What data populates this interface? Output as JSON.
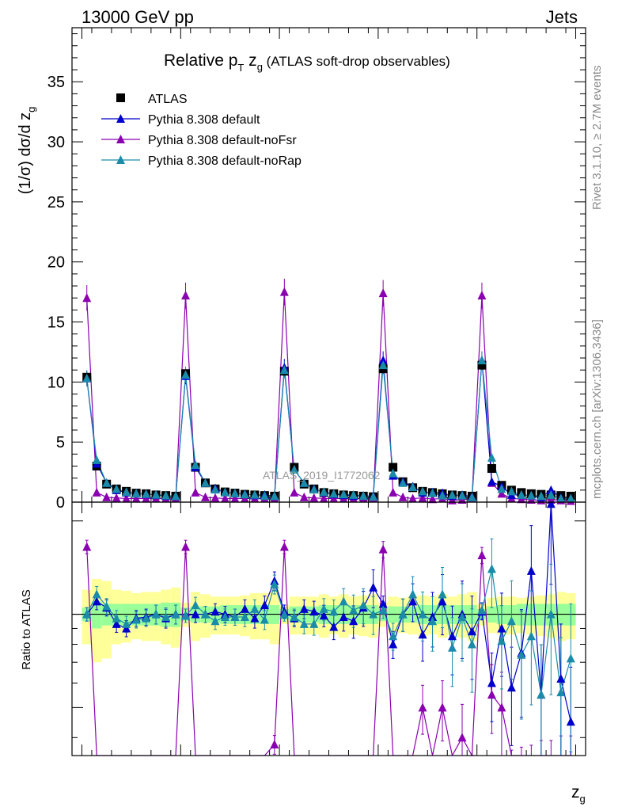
{
  "header": {
    "left": "13000 GeV pp",
    "right": "Jets"
  },
  "side_labels": {
    "rivet": "Rivet 3.1.10, ≥ 2.7M events",
    "mcplots": "mcplots.cern.ch [arXiv:1306.3436]"
  },
  "watermark": "ATLAS_2019_I1772062",
  "chart_data": {
    "type": "scatter",
    "title_main": "Relative p",
    "title_sub": "T",
    "title_z": " z",
    "title_g": "g",
    "title_rest": " (ATLAS soft-drop observables)",
    "ylabel_upper": "(1/σ) dσ/d z",
    "ylabel_upper_sub": "g",
    "ylabel_lower": "Ratio to ATLAS",
    "xlabel": "z",
    "xlabel_sub": "g",
    "xlim": [
      -1,
      51
    ],
    "ylim_upper": [
      0,
      39.5
    ],
    "ylim_lower": [
      0.35,
      2.3
    ],
    "x_ticks": [
      "0",
      "20",
      "40"
    ],
    "y_ticks_upper": [
      "0",
      "5",
      "10",
      "15",
      "20",
      "25",
      "30",
      "35"
    ],
    "y_ticks_lower": [
      "0.5",
      "1",
      "2"
    ],
    "legend": [
      "ATLAS",
      "Pythia 8.308 default",
      "Pythia 8.308 default-noFsr",
      "Pythia 8.308 default-noRap"
    ],
    "colors": {
      "data": "#000000",
      "default": "#0000cc",
      "noFsr": "#8a00b0",
      "noRap": "#1a8caa",
      "band_outer": "#ffff99",
      "band_inner": "#99ff99"
    },
    "x": [
      0.5,
      1.5,
      2.5,
      3.5,
      4.5,
      5.5,
      6.5,
      7.5,
      8.5,
      9.5,
      10.5,
      11.5,
      12.5,
      13.5,
      14.5,
      15.5,
      16.5,
      17.5,
      18.5,
      19.5,
      20.5,
      21.5,
      22.5,
      23.5,
      24.5,
      25.5,
      26.5,
      27.5,
      28.5,
      29.5,
      30.5,
      31.5,
      32.5,
      33.5,
      34.5,
      35.5,
      36.5,
      37.5,
      38.5,
      39.5,
      40.5,
      41.5,
      42.5,
      43.5,
      44.5,
      45.5,
      46.5,
      47.5,
      48.5,
      49.5
    ],
    "atlas": [
      10.4,
      3.0,
      1.5,
      1.1,
      0.9,
      0.75,
      0.7,
      0.6,
      0.55,
      0.5,
      10.7,
      2.9,
      1.6,
      1.1,
      0.85,
      0.75,
      0.65,
      0.6,
      0.55,
      0.5,
      10.9,
      2.9,
      1.5,
      1.1,
      0.8,
      0.7,
      0.6,
      0.55,
      0.5,
      0.45,
      11.1,
      2.9,
      1.7,
      1.2,
      0.9,
      0.8,
      0.7,
      0.6,
      0.55,
      0.5,
      11.4,
      2.8,
      1.4,
      1.0,
      0.8,
      0.7,
      0.65,
      0.6,
      0.55,
      0.5
    ],
    "default": [
      10.3,
      3.2,
      1.6,
      1.0,
      0.8,
      0.72,
      0.65,
      0.6,
      0.52,
      0.5,
      10.5,
      2.9,
      1.6,
      1.15,
      0.82,
      0.73,
      0.68,
      0.58,
      0.6,
      0.5,
      11.2,
      2.7,
      1.6,
      1.1,
      0.82,
      0.65,
      0.6,
      0.53,
      0.52,
      0.5,
      11.8,
      2.2,
      1.7,
      1.3,
      0.78,
      0.8,
      0.75,
      0.52,
      0.6,
      0.45,
      11.8,
      1.7,
      1.3,
      0.6,
      0.6,
      0.55,
      0.4,
      1.0,
      0.35,
      0.3
    ],
    "noFsr": [
      17.0,
      0.8,
      0.4,
      0.35,
      0.3,
      0.3,
      0.3,
      0.3,
      0.3,
      0.3,
      17.2,
      0.8,
      0.4,
      0.35,
      0.3,
      0.3,
      0.3,
      0.3,
      0.3,
      0.3,
      17.5,
      0.8,
      0.4,
      0.35,
      0.3,
      0.3,
      0.3,
      0.3,
      0.3,
      0.3,
      17.4,
      0.8,
      0.4,
      0.3,
      0.35,
      0.25,
      0.3,
      0.15,
      0.2,
      0.3,
      17.2,
      1.6,
      0.7,
      0.3,
      0.25,
      0.2,
      0.15,
      0.2,
      0.15,
      0.1
    ],
    "noRap": [
      10.3,
      3.5,
      1.6,
      1.1,
      0.85,
      0.72,
      0.68,
      0.62,
      0.55,
      0.5,
      10.6,
      3.1,
      1.6,
      1.05,
      0.82,
      0.73,
      0.64,
      0.62,
      0.52,
      0.5,
      11.0,
      2.7,
      1.6,
      1.05,
      0.85,
      0.7,
      0.65,
      0.6,
      0.53,
      0.45,
      11.4,
      2.4,
      1.6,
      1.25,
      0.9,
      0.75,
      0.55,
      0.6,
      0.55,
      0.4,
      11.8,
      3.7,
      1.1,
      0.9,
      0.6,
      0.55,
      0.5,
      0.6,
      0.3,
      0.3
    ],
    "ratio_default": [
      1.0,
      1.1,
      1.05,
      0.93,
      0.9,
      0.97,
      0.98,
      1.0,
      0.97,
      1.0,
      0.99,
      1.0,
      1.0,
      1.02,
      1.0,
      0.98,
      1.04,
      0.97,
      1.07,
      1.28,
      1.02,
      0.97,
      1.04,
      1.02,
      0.99,
      0.91,
      0.98,
      0.95,
      1.05,
      1.22,
      1.08,
      0.8,
      1.0,
      1.1,
      0.86,
      0.98,
      1.1,
      0.85,
      1.0,
      0.88,
      1.02,
      0.6,
      0.9,
      0.58,
      0.75,
      1.38,
      0.55,
      2.27,
      0.62,
      0.45
    ],
    "ratio_noFsr": [
      1.65,
      0.27,
      0.27,
      0.27,
      0.27,
      0.27,
      0.27,
      0.27,
      0.27,
      0.27,
      1.65,
      0.27,
      0.27,
      0.27,
      0.27,
      0.27,
      0.27,
      0.27,
      0.27,
      0.38,
      1.65,
      0.27,
      0.27,
      0.27,
      0.27,
      0.27,
      0.27,
      0.27,
      0.27,
      0.27,
      1.62,
      0.27,
      0.27,
      0.27,
      0.5,
      0.27,
      0.5,
      0.27,
      0.4,
      0.27,
      1.55,
      0.55,
      0.5,
      0.27,
      0.27,
      0.27,
      0.27,
      0.27,
      0.27,
      0.27
    ],
    "ratio_noRap": [
      1.0,
      1.16,
      1.06,
      0.97,
      0.93,
      0.96,
      0.97,
      1.0,
      0.98,
      1.0,
      0.99,
      1.07,
      1.0,
      0.95,
      0.98,
      0.98,
      0.98,
      1.04,
      0.96,
      1.25,
      1.0,
      0.98,
      0.93,
      0.93,
      1.04,
      1.02,
      1.1,
      1.03,
      1.07,
      1.0,
      1.03,
      0.85,
      1.0,
      1.16,
      1.0,
      0.95,
      1.16,
      0.78,
      0.98,
      0.8,
      1.03,
      1.4,
      0.82,
      0.95,
      0.74,
      0.85,
      0.55,
      1.0,
      0.56,
      0.72
    ],
    "band_inner": [
      0.05,
      0.1,
      0.08,
      0.08,
      0.08,
      0.08,
      0.08,
      0.08,
      0.09,
      0.09,
      0.05,
      0.06,
      0.06,
      0.06,
      0.07,
      0.07,
      0.07,
      0.07,
      0.07,
      0.07,
      0.04,
      0.06,
      0.06,
      0.06,
      0.07,
      0.07,
      0.07,
      0.07,
      0.07,
      0.07,
      0.05,
      0.06,
      0.06,
      0.06,
      0.07,
      0.07,
      0.07,
      0.07,
      0.07,
      0.07,
      0.04,
      0.06,
      0.07,
      0.07,
      0.08,
      0.08,
      0.08,
      0.08,
      0.08,
      0.08
    ],
    "band_outer": [
      0.2,
      0.3,
      0.28,
      0.2,
      0.19,
      0.17,
      0.18,
      0.18,
      0.2,
      0.22,
      0.09,
      0.18,
      0.16,
      0.14,
      0.14,
      0.14,
      0.15,
      0.17,
      0.17,
      0.2,
      0.07,
      0.14,
      0.14,
      0.14,
      0.16,
      0.14,
      0.16,
      0.14,
      0.15,
      0.16,
      0.09,
      0.14,
      0.13,
      0.14,
      0.15,
      0.14,
      0.16,
      0.14,
      0.16,
      0.18,
      0.08,
      0.13,
      0.14,
      0.14,
      0.13,
      0.14,
      0.15,
      0.16,
      0.18,
      0.17
    ],
    "err_default": [
      0.05,
      0.06,
      0.06,
      0.06,
      0.06,
      0.06,
      0.06,
      0.07,
      0.07,
      0.07,
      0.05,
      0.06,
      0.06,
      0.06,
      0.06,
      0.06,
      0.07,
      0.07,
      0.07,
      0.07,
      0.05,
      0.06,
      0.07,
      0.08,
      0.08,
      0.09,
      0.1,
      0.12,
      0.13,
      0.14,
      0.06,
      0.1,
      0.12,
      0.14,
      0.18,
      0.2,
      0.22,
      0.25,
      0.28,
      0.3,
      0.06,
      0.25,
      0.3,
      0.35,
      0.38,
      0.4,
      0.45,
      0.45,
      0.5,
      0.5
    ],
    "err_noRap": [
      0.05,
      0.06,
      0.06,
      0.06,
      0.06,
      0.06,
      0.06,
      0.07,
      0.07,
      0.07,
      0.05,
      0.06,
      0.06,
      0.06,
      0.06,
      0.06,
      0.07,
      0.07,
      0.07,
      0.07,
      0.05,
      0.06,
      0.07,
      0.08,
      0.08,
      0.09,
      0.1,
      0.12,
      0.13,
      0.14,
      0.06,
      0.1,
      0.12,
      0.14,
      0.18,
      0.2,
      0.22,
      0.25,
      0.28,
      0.3,
      0.06,
      0.25,
      0.3,
      0.35,
      0.38,
      0.4,
      0.45,
      0.45,
      0.5,
      0.5
    ],
    "err_noFsr": [
      0.05,
      0.06,
      0.06,
      0.06,
      0.06,
      0.06,
      0.06,
      0.07,
      0.07,
      0.07,
      0.05,
      0.06,
      0.06,
      0.06,
      0.06,
      0.06,
      0.07,
      0.07,
      0.07,
      0.07,
      0.05,
      0.06,
      0.07,
      0.08,
      0.08,
      0.09,
      0.1,
      0.12,
      0.13,
      0.14,
      0.06,
      0.1,
      0.12,
      0.14,
      0.18,
      0.2,
      0.22,
      0.25,
      0.28,
      0.3,
      0.06,
      0.25,
      0.3,
      0.35,
      0.38,
      0.4,
      0.45,
      0.45,
      0.5,
      0.5
    ]
  }
}
